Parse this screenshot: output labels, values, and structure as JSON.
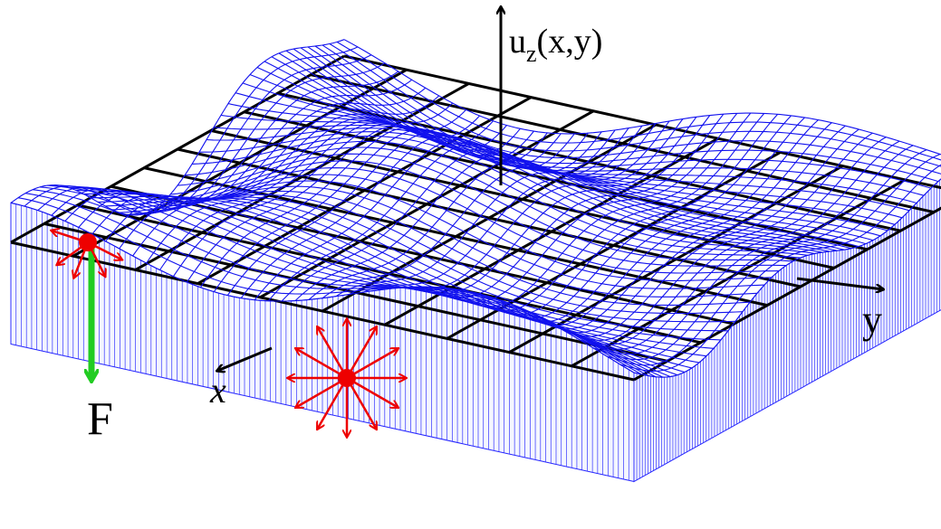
{
  "labels": {
    "u": "u",
    "z": "z",
    "args": "(x,y)",
    "x": "x",
    "y": "y",
    "force": "F"
  }
}
